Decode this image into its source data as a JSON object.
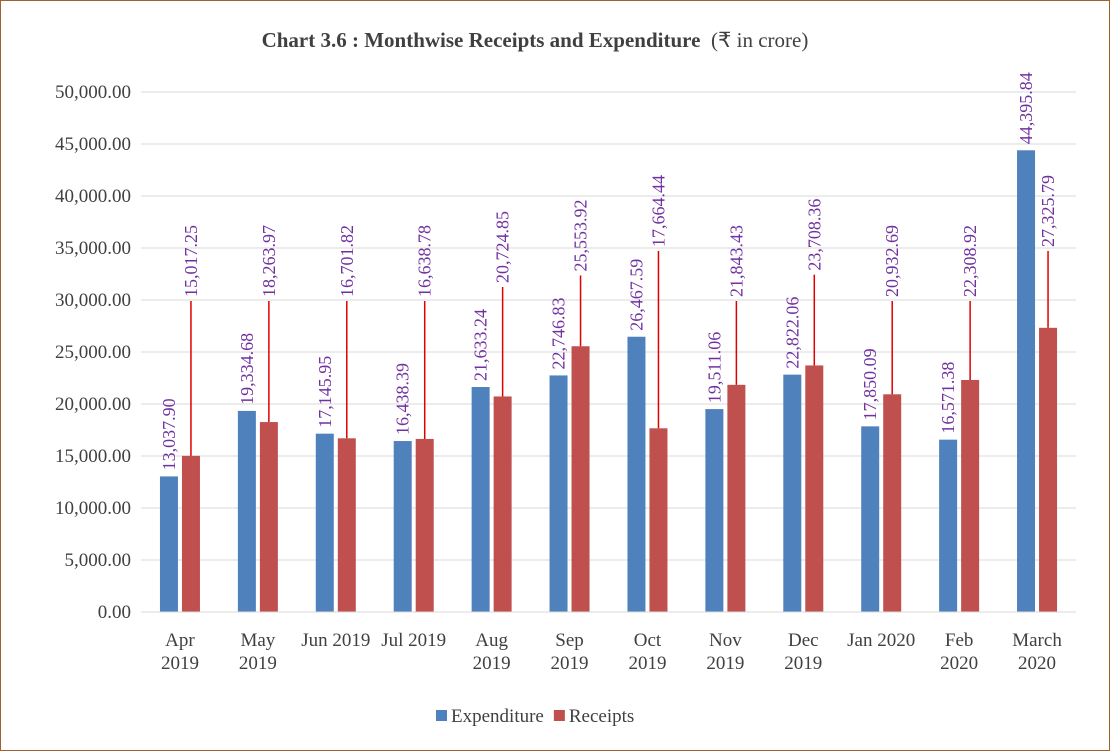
{
  "chart_data": {
    "type": "bar",
    "title": "Chart 3.6 : Monthwise Receipts and Expenditure",
    "subtitle": "(₹ in crore)",
    "categories": [
      "Apr 2019",
      "May 2019",
      "Jun 2019",
      "Jul 2019",
      "Aug 2019",
      "Sep 2019",
      "Oct 2019",
      "Nov 2019",
      "Dec 2019",
      "Jan 2020",
      "Feb 2020",
      "March 2020"
    ],
    "series": [
      {
        "name": "Expenditure",
        "color": "#4f81bd",
        "values": [
          13037.9,
          19334.68,
          17145.95,
          16438.39,
          21633.24,
          22746.83,
          26467.59,
          19511.06,
          22822.06,
          17850.09,
          16571.38,
          44395.84
        ],
        "value_labels": [
          "13,037.90",
          "19,334.68",
          "17,145.95",
          "16,438.39",
          "21,633.24",
          "22,746.83",
          "26,467.59",
          "19,511.06",
          "22,822.06",
          "17,850.09",
          "16,571.38",
          "44,395.84"
        ]
      },
      {
        "name": "Receipts",
        "color": "#c0504d",
        "values": [
          15017.25,
          18263.97,
          16701.82,
          16638.78,
          20724.85,
          25553.92,
          17664.44,
          21843.43,
          23708.36,
          20932.69,
          22308.92,
          27325.79
        ],
        "value_labels": [
          "15,017.25",
          "18,263.97",
          "16,701.82",
          "16,638.78",
          "20,724.85",
          "25,553.92",
          "17,664.44",
          "21,843.43",
          "23,708.36",
          "20,932.69",
          "22,308.92",
          "27,325.79"
        ]
      }
    ],
    "ylim": [
      0,
      50000
    ],
    "yticks": [
      {
        "value": 0,
        "label": "0.00"
      },
      {
        "value": 5000,
        "label": "5,000.00"
      },
      {
        "value": 10000,
        "label": "10,000.00"
      },
      {
        "value": 15000,
        "label": "15,000.00"
      },
      {
        "value": 20000,
        "label": "20,000.00"
      },
      {
        "value": 25000,
        "label": "25,000.00"
      },
      {
        "value": 30000,
        "label": "30,000.00"
      },
      {
        "value": 35000,
        "label": "35,000.00"
      },
      {
        "value": 40000,
        "label": "40,000.00"
      },
      {
        "value": 45000,
        "label": "45,000.00"
      },
      {
        "value": 50000,
        "label": "50,000.00"
      }
    ],
    "grid": true,
    "legend": "bottom"
  }
}
